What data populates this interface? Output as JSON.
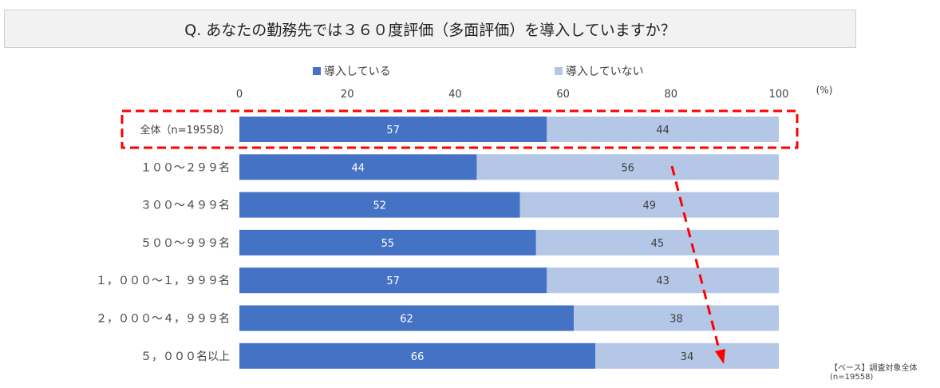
{
  "title": "Q. あなたの勤務先では３６０度評価（多面評価）を導入していますか？",
  "unit_label": "(%)",
  "note": {
    "line1": "【ベース】調査対象全体",
    "line2": "(n=19558)"
  },
  "colors": {
    "series1": "#4472c4",
    "series2": "#b4c7e7",
    "highlight": "#ff0000"
  },
  "chart_data": {
    "type": "bar",
    "orientation": "horizontal",
    "stacked": true,
    "categories": [
      "全体（n=19558）",
      "１００～２９９名",
      "３００～４９９名",
      "５００～９９９名",
      "１，０００～１，９９９名",
      "２，０００～４，９９９名",
      "５，０００名以上"
    ],
    "series": [
      {
        "name": "導入している",
        "values": [
          57,
          44,
          52,
          55,
          57,
          62,
          66
        ]
      },
      {
        "name": "導入していない",
        "values": [
          44,
          56,
          49,
          45,
          43,
          38,
          34
        ]
      }
    ],
    "xlim": [
      0,
      100
    ],
    "xticks": [
      0,
      20,
      40,
      60,
      80,
      100
    ],
    "legend_position": "top",
    "grid": false
  }
}
